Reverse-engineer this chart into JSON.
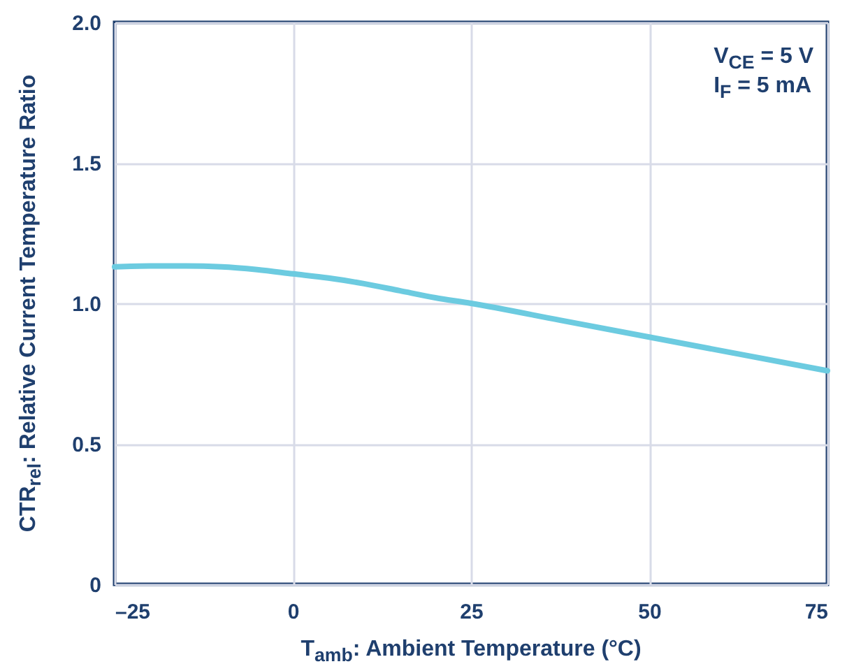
{
  "chart_data": {
    "type": "line",
    "xlabel": "T$_{amb}$: Ambient Temperature (°C)",
    "ylabel": "CTR$_{rel}$: Relative Current Temperature Ratio",
    "annotations": [
      "V$_{CE}$ = 5 V",
      "I$_{F}$ = 5 mA"
    ],
    "x": [
      -25,
      -20,
      -15,
      -10,
      -5,
      0,
      5,
      10,
      15,
      20,
      25,
      37.5,
      50,
      62.5,
      75
    ],
    "series": [
      {
        "color": "#6ccbe0",
        "values": [
          1.13,
          1.133,
          1.133,
          1.13,
          1.12,
          1.105,
          1.09,
          1.07,
          1.045,
          1.02,
          1.0,
          0.94,
          0.88,
          0.82,
          0.76
        ]
      }
    ],
    "xlim": [
      -25,
      75
    ],
    "xticks": [
      {
        "value": -25,
        "label": "–25"
      },
      0,
      25,
      50,
      75
    ],
    "ylim": [
      0,
      2
    ],
    "yticks": [
      0,
      0.5,
      {
        "value": 1,
        "label": "1.0"
      },
      1.5,
      {
        "value": 2,
        "label": "2.0"
      }
    ],
    "grid": true,
    "marker": "none",
    "line_style": "solid"
  }
}
